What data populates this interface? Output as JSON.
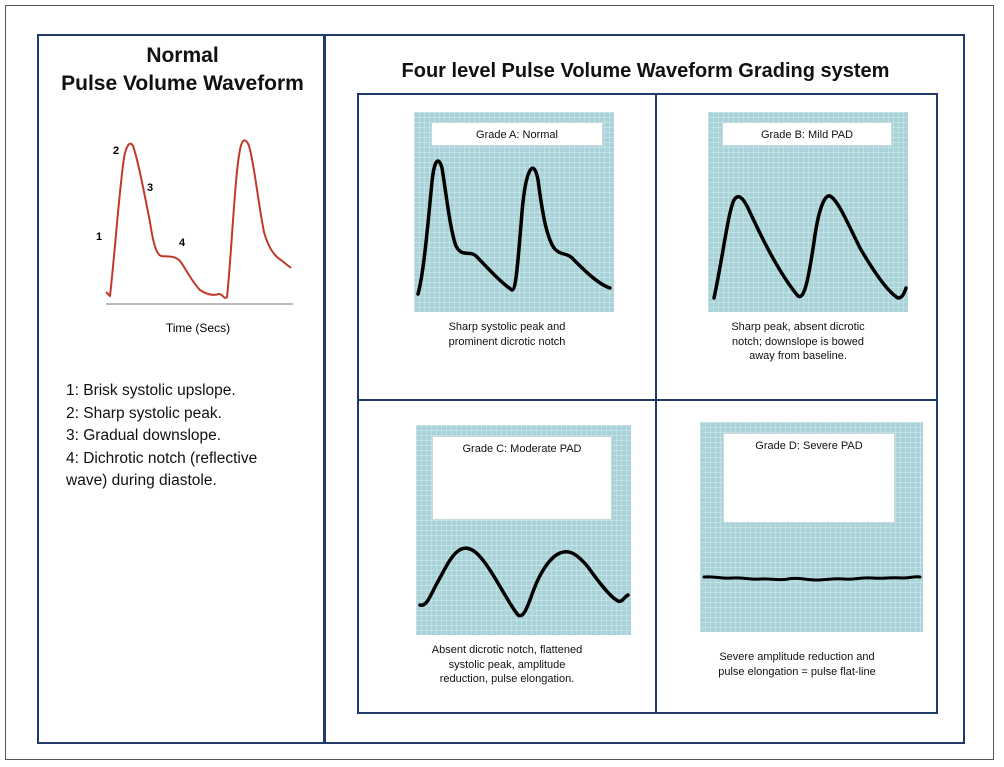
{
  "left_panel": {
    "title_line1": "Normal",
    "title_line2": "Pulse Volume Waveform",
    "markers": [
      "1",
      "2",
      "3",
      "4"
    ],
    "axis_label": "Time (Secs)",
    "legend": [
      "1: Brisk systolic upslope.",
      "2: Sharp systolic peak.",
      "3: Gradual downslope.",
      "4: Dichrotic notch (reflective",
      "wave) during diastole."
    ]
  },
  "right_panel": {
    "title": "Four level Pulse Volume Waveform Grading system",
    "grades": [
      {
        "label": "Grade A: Normal",
        "caption": [
          "Sharp systolic peak and",
          "prominent dicrotic notch"
        ]
      },
      {
        "label": "Grade B: Mild PAD",
        "caption": [
          "Sharp peak, absent dicrotic",
          "notch; downslope is bowed",
          "away from baseline."
        ]
      },
      {
        "label": "Grade C: Moderate PAD",
        "caption": [
          "Absent dicrotic notch, flattened",
          "systolic peak, amplitude",
          "reduction, pulse elongation."
        ]
      },
      {
        "label": "Grade D: Severe PAD",
        "caption": [
          "Severe amplitude reduction and",
          "pulse elongation = pulse flat-line"
        ]
      }
    ]
  },
  "colors": {
    "frame": "#1f3a6b",
    "normal_wave": "#c0392b",
    "grid_bg": "#a9d3d9",
    "grid_line": "#eaf6f8",
    "trace": "#000000"
  }
}
